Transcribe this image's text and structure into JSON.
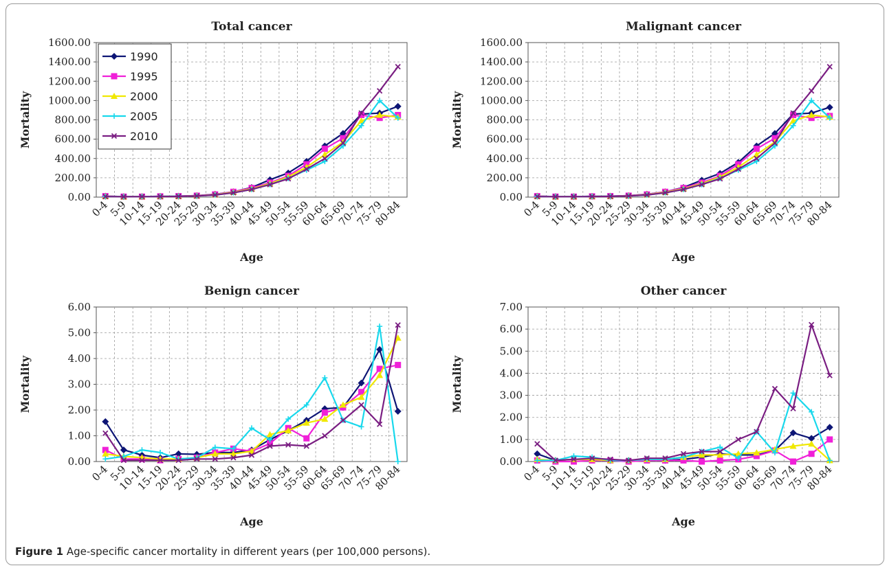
{
  "caption": {
    "figure_label": "Figure 1",
    "text": "Age-specific cancer mortality in different years (per 100,000 persons)."
  },
  "series_colors": {
    "1990": "#0d1575",
    "1995": "#f020d8",
    "2000": "#f0e800",
    "2005": "#18d8ec",
    "2010": "#7a1e82"
  },
  "chart_data": [
    {
      "type": "line",
      "title": "Total cancer",
      "xlabel": "Age",
      "ylabel": "Mortality",
      "ylim": [
        0,
        1600
      ],
      "yticks": [
        "0.00",
        "200.00",
        "400.00",
        "600.00",
        "800.00",
        "1000.00",
        "1200.00",
        "1400.00",
        "1600.00"
      ],
      "grid": true,
      "legend": "top-left inside",
      "categories": [
        "0-4",
        "5-9",
        "10-14",
        "15-19",
        "20-24",
        "25-29",
        "30-34",
        "35-39",
        "40-44",
        "45-49",
        "50-54",
        "55-59",
        "60-64",
        "65-69",
        "70-74",
        "75-79",
        "80-84"
      ],
      "series": [
        {
          "name": "1990",
          "values": [
            10,
            5,
            5,
            8,
            10,
            15,
            30,
            55,
            100,
            180,
            250,
            370,
            530,
            660,
            860,
            870,
            940
          ]
        },
        {
          "name": "1995",
          "values": [
            10,
            5,
            5,
            8,
            10,
            15,
            28,
            55,
            95,
            150,
            220,
            340,
            500,
            610,
            850,
            820,
            850
          ]
        },
        {
          "name": "2000",
          "values": [
            8,
            4,
            5,
            7,
            9,
            13,
            25,
            50,
            85,
            140,
            210,
            310,
            440,
            570,
            790,
            850,
            830
          ]
        },
        {
          "name": "2005",
          "values": [
            7,
            4,
            5,
            7,
            9,
            12,
            22,
            45,
            80,
            130,
            195,
            280,
            370,
            530,
            740,
            1000,
            820
          ]
        },
        {
          "name": "2010",
          "values": [
            6,
            4,
            5,
            6,
            8,
            12,
            22,
            45,
            80,
            130,
            190,
            290,
            400,
            560,
            870,
            1100,
            1350
          ]
        }
      ]
    },
    {
      "type": "line",
      "title": "Malignant cancer",
      "xlabel": "Age",
      "ylabel": "Mortality",
      "ylim": [
        0,
        1600
      ],
      "yticks": [
        "0.00",
        "200.00",
        "400.00",
        "600.00",
        "800.00",
        "1000.00",
        "1200.00",
        "1400.00",
        "1600.00"
      ],
      "grid": true,
      "categories": [
        "0-4",
        "5-9",
        "10-14",
        "15-19",
        "20-24",
        "25-29",
        "30-34",
        "35-39",
        "40-44",
        "45-49",
        "50-54",
        "55-59",
        "60-64",
        "65-69",
        "70-74",
        "75-79",
        "80-84"
      ],
      "series": [
        {
          "name": "1990",
          "values": [
            10,
            5,
            5,
            8,
            10,
            15,
            30,
            55,
            100,
            175,
            245,
            360,
            530,
            660,
            860,
            870,
            930
          ]
        },
        {
          "name": "1995",
          "values": [
            10,
            5,
            5,
            8,
            10,
            15,
            28,
            55,
            95,
            150,
            220,
            340,
            500,
            610,
            850,
            820,
            840
          ]
        },
        {
          "name": "2000",
          "values": [
            8,
            4,
            5,
            7,
            9,
            13,
            25,
            50,
            85,
            140,
            210,
            310,
            440,
            570,
            790,
            850,
            830
          ]
        },
        {
          "name": "2005",
          "values": [
            7,
            4,
            5,
            7,
            9,
            12,
            22,
            45,
            80,
            130,
            195,
            280,
            370,
            530,
            740,
            1000,
            820
          ]
        },
        {
          "name": "2010",
          "values": [
            6,
            4,
            5,
            6,
            8,
            12,
            22,
            45,
            80,
            130,
            190,
            290,
            400,
            560,
            870,
            1100,
            1350
          ]
        }
      ]
    },
    {
      "type": "line",
      "title": "Benign cancer",
      "xlabel": "Age",
      "ylabel": "Mortality",
      "ylim": [
        0,
        6
      ],
      "yticks": [
        "0.00",
        "1.00",
        "2.00",
        "3.00",
        "4.00",
        "5.00",
        "6.00"
      ],
      "grid": true,
      "categories": [
        "0-4",
        "5-9",
        "10-14",
        "15-19",
        "20-24",
        "25-29",
        "30-34",
        "35-39",
        "40-44",
        "45-49",
        "50-54",
        "55-59",
        "60-64",
        "65-69",
        "70-74",
        "75-79",
        "80-84"
      ],
      "series": [
        {
          "name": "1990",
          "values": [
            1.55,
            0.45,
            0.25,
            0.15,
            0.3,
            0.28,
            0.35,
            0.35,
            0.45,
            0.85,
            1.2,
            1.6,
            2.05,
            2.1,
            3.05,
            4.35,
            1.95
          ]
        },
        {
          "name": "1995",
          "values": [
            0.45,
            0.1,
            0.1,
            0.05,
            0.1,
            0.15,
            0.35,
            0.5,
            0.4,
            0.7,
            1.3,
            0.9,
            1.9,
            2.1,
            2.7,
            3.6,
            3.75
          ]
        },
        {
          "name": "2000",
          "values": [
            0.3,
            0.2,
            0.15,
            0.1,
            0.1,
            0.15,
            0.3,
            0.3,
            0.4,
            1.05,
            1.2,
            1.5,
            1.65,
            2.2,
            2.5,
            3.35,
            4.8
          ]
        },
        {
          "name": "2005",
          "values": [
            0.1,
            0.2,
            0.45,
            0.35,
            0.1,
            0.15,
            0.55,
            0.5,
            1.3,
            0.85,
            1.65,
            2.2,
            3.25,
            1.6,
            1.35,
            5.25,
            0.0
          ]
        },
        {
          "name": "2010",
          "values": [
            1.1,
            0.05,
            0.05,
            0.05,
            0.05,
            0.1,
            0.1,
            0.15,
            0.25,
            0.6,
            0.65,
            0.6,
            1.0,
            1.6,
            2.2,
            1.45,
            5.3
          ]
        }
      ]
    },
    {
      "type": "line",
      "title": "Other cancer",
      "xlabel": "Age",
      "ylabel": "Mortality",
      "ylim": [
        0,
        7
      ],
      "yticks": [
        "0.00",
        "1.00",
        "2.00",
        "3.00",
        "4.00",
        "5.00",
        "6.00",
        "7.00"
      ],
      "grid": true,
      "categories": [
        "0-4",
        "5-9",
        "10-14",
        "15-19",
        "20-24",
        "25-29",
        "30-34",
        "35-39",
        "40-44",
        "45-49",
        "50-54",
        "55-59",
        "60-64",
        "65-69",
        "70-74",
        "75-79",
        "80-84"
      ],
      "series": [
        {
          "name": "1990",
          "values": [
            0.35,
            0.05,
            0.1,
            0.1,
            0.05,
            0.05,
            0.1,
            0.05,
            0.1,
            0.2,
            0.35,
            0.3,
            0.3,
            0.5,
            1.3,
            1.05,
            1.55
          ]
        },
        {
          "name": "1995",
          "values": [
            0.05,
            0.0,
            0.0,
            0.05,
            0.05,
            0.0,
            0.05,
            0.05,
            0.05,
            0.0,
            0.05,
            0.1,
            0.25,
            0.5,
            0.0,
            0.35,
            1.0
          ]
        },
        {
          "name": "2000",
          "values": [
            0.1,
            0.05,
            0.1,
            0.1,
            0.05,
            0.05,
            0.1,
            0.1,
            0.2,
            0.3,
            0.3,
            0.35,
            0.4,
            0.55,
            0.7,
            0.8,
            0.05
          ]
        },
        {
          "name": "2005",
          "values": [
            0.05,
            0.05,
            0.25,
            0.2,
            0.05,
            0.05,
            0.1,
            0.1,
            0.2,
            0.45,
            0.65,
            0.15,
            1.35,
            0.4,
            3.1,
            2.25,
            0.05
          ]
        },
        {
          "name": "2010",
          "values": [
            0.8,
            0.05,
            0.1,
            0.15,
            0.1,
            0.05,
            0.15,
            0.15,
            0.35,
            0.45,
            0.45,
            1.0,
            1.35,
            3.3,
            2.4,
            6.2,
            3.9
          ]
        }
      ]
    }
  ]
}
